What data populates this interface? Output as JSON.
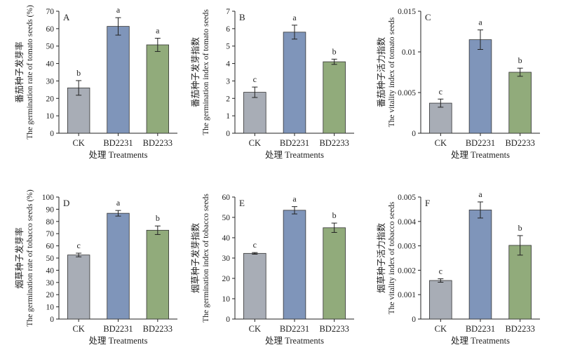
{
  "figure": {
    "bar_colors": [
      "#a8adb6",
      "#7f95ba",
      "#91ab7b"
    ]
  },
  "chart_data": [
    {
      "panel": "A",
      "type": "bar",
      "categories": [
        "CK",
        "BD2231",
        "BD2233"
      ],
      "values": [
        26,
        61.3,
        50.7
      ],
      "errors": [
        4.2,
        5.0,
        3.8
      ],
      "letters": [
        "b",
        "a",
        "a"
      ],
      "ylim": [
        0,
        70
      ],
      "yticks": [
        "0",
        "10",
        "20",
        "30",
        "40",
        "50",
        "60",
        "70"
      ],
      "ylabel_cn": "番茄种子发芽率",
      "ylabel_en": "The germination rate of tomato seeds (%)",
      "xlabel": "处理 Treatments"
    },
    {
      "panel": "B",
      "type": "bar",
      "categories": [
        "CK",
        "BD2231",
        "BD2233"
      ],
      "values": [
        2.35,
        5.8,
        4.1
      ],
      "errors": [
        0.3,
        0.4,
        0.15
      ],
      "letters": [
        "c",
        "a",
        "b"
      ],
      "ylim": [
        0,
        7
      ],
      "yticks": [
        "0",
        "1",
        "2",
        "3",
        "4",
        "5",
        "6",
        "7"
      ],
      "ylabel_cn": "番茄种子发芽指数",
      "ylabel_en": "The germination index of tomato seeds",
      "xlabel": "处理 Treatments"
    },
    {
      "panel": "C",
      "type": "bar",
      "categories": [
        "CK",
        "BD2231",
        "BD2233"
      ],
      "values": [
        0.0037,
        0.0115,
        0.0075
      ],
      "errors": [
        0.0005,
        0.0012,
        0.0005
      ],
      "letters": [
        "c",
        "a",
        "b"
      ],
      "ylim": [
        0,
        0.015
      ],
      "yticks": [
        "0",
        "0.005",
        "0.01",
        "0.015"
      ],
      "ylabel_cn": "番茄种子活力指数",
      "ylabel_en": "The vitality index of tomato seeds",
      "xlabel": "处理 Treatments"
    },
    {
      "panel": "D",
      "type": "bar",
      "categories": [
        "CK",
        "BD2231",
        "BD2233"
      ],
      "values": [
        52.5,
        86.7,
        72.8
      ],
      "errors": [
        1.5,
        2.3,
        3.5
      ],
      "letters": [
        "c",
        "a",
        "b"
      ],
      "ylim": [
        0,
        100
      ],
      "yticks": [
        "0",
        "10",
        "20",
        "30",
        "40",
        "50",
        "60",
        "70",
        "80",
        "90",
        "100"
      ],
      "ylabel_cn": "烟草种子发芽率",
      "ylabel_en": "The germination rate of tobacco seeds (%)",
      "xlabel": "处理 Treatments"
    },
    {
      "panel": "E",
      "type": "bar",
      "categories": [
        "CK",
        "BD2231",
        "BD2233"
      ],
      "values": [
        32.3,
        53.5,
        44.9
      ],
      "errors": [
        0.4,
        1.8,
        2.3
      ],
      "letters": [
        "c",
        "a",
        "b"
      ],
      "ylim": [
        0,
        60
      ],
      "yticks": [
        "0",
        "10",
        "20",
        "30",
        "40",
        "50",
        "60"
      ],
      "ylabel_cn": "烟草种子发芽指数",
      "ylabel_en": "The germination index of tobacco seeds",
      "xlabel": "处理 Treatments"
    },
    {
      "panel": "F",
      "type": "bar",
      "categories": [
        "CK",
        "BD2231",
        "BD2233"
      ],
      "values": [
        0.00158,
        0.00447,
        0.00302
      ],
      "errors": [
        7e-05,
        0.00033,
        0.0004
      ],
      "letters": [
        "c",
        "a",
        "b"
      ],
      "ylim": [
        0,
        0.005
      ],
      "yticks": [
        "0",
        "0.001",
        "0.002",
        "0.003",
        "0.004",
        "0.005"
      ],
      "ylabel_cn": "烟草种子活力指数",
      "ylabel_en": "The vitality index of tobacco seeds",
      "xlabel": "处理 Treatments"
    }
  ]
}
